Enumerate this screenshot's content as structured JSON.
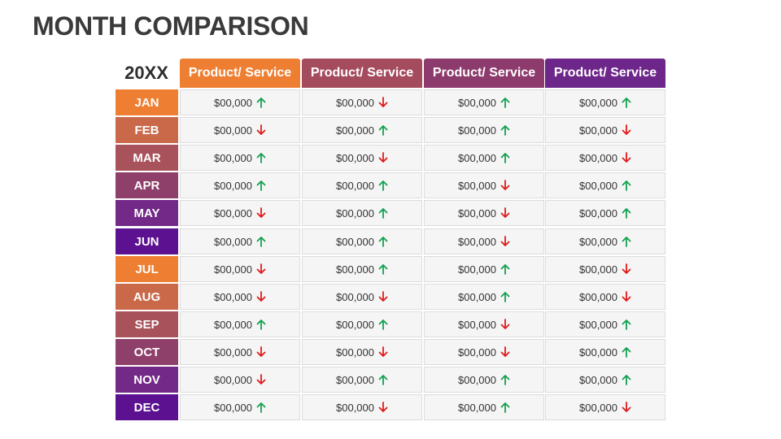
{
  "title": "MONTH COMPARISON",
  "year": "20XX",
  "colors": {
    "up": "#12a150",
    "down": "#e01b1b"
  },
  "headers": [
    {
      "label": "Product/ Service",
      "color": "#ee7f32"
    },
    {
      "label": "Product/ Service",
      "color": "#a54b5e"
    },
    {
      "label": "Product/ Service",
      "color": "#8d3a6c"
    },
    {
      "label": "Product/ Service",
      "color": "#6d2689"
    }
  ],
  "rows": [
    {
      "month": "JAN",
      "color": "#ee7f32",
      "cells": [
        {
          "value": "$00,000",
          "trend": "up"
        },
        {
          "value": "$00,000",
          "trend": "down"
        },
        {
          "value": "$00,000",
          "trend": "up"
        },
        {
          "value": "$00,000",
          "trend": "up"
        }
      ]
    },
    {
      "month": "FEB",
      "color": "#c9694a",
      "cells": [
        {
          "value": "$00,000",
          "trend": "down"
        },
        {
          "value": "$00,000",
          "trend": "up"
        },
        {
          "value": "$00,000",
          "trend": "up"
        },
        {
          "value": "$00,000",
          "trend": "down"
        }
      ]
    },
    {
      "month": "MAR",
      "color": "#a8525b",
      "cells": [
        {
          "value": "$00,000",
          "trend": "up"
        },
        {
          "value": "$00,000",
          "trend": "down"
        },
        {
          "value": "$00,000",
          "trend": "up"
        },
        {
          "value": "$00,000",
          "trend": "down"
        }
      ]
    },
    {
      "month": "APR",
      "color": "#8e3f6a",
      "cells": [
        {
          "value": "$00,000",
          "trend": "up"
        },
        {
          "value": "$00,000",
          "trend": "up"
        },
        {
          "value": "$00,000",
          "trend": "down"
        },
        {
          "value": "$00,000",
          "trend": "up"
        }
      ]
    },
    {
      "month": "MAY",
      "color": "#722987",
      "cells": [
        {
          "value": "$00,000",
          "trend": "down"
        },
        {
          "value": "$00,000",
          "trend": "up"
        },
        {
          "value": "$00,000",
          "trend": "down"
        },
        {
          "value": "$00,000",
          "trend": "up"
        }
      ]
    },
    {
      "month": "JUN",
      "color": "#5b1190",
      "cells": [
        {
          "value": "$00,000",
          "trend": "up"
        },
        {
          "value": "$00,000",
          "trend": "up"
        },
        {
          "value": "$00,000",
          "trend": "down"
        },
        {
          "value": "$00,000",
          "trend": "up"
        }
      ]
    },
    {
      "month": "JUL",
      "color": "#ee7f32",
      "cells": [
        {
          "value": "$00,000",
          "trend": "down"
        },
        {
          "value": "$00,000",
          "trend": "up"
        },
        {
          "value": "$00,000",
          "trend": "up"
        },
        {
          "value": "$00,000",
          "trend": "down"
        }
      ]
    },
    {
      "month": "AUG",
      "color": "#c9694a",
      "cells": [
        {
          "value": "$00,000",
          "trend": "down"
        },
        {
          "value": "$00,000",
          "trend": "down"
        },
        {
          "value": "$00,000",
          "trend": "up"
        },
        {
          "value": "$00,000",
          "trend": "down"
        }
      ]
    },
    {
      "month": "SEP",
      "color": "#a8525b",
      "cells": [
        {
          "value": "$00,000",
          "trend": "up"
        },
        {
          "value": "$00,000",
          "trend": "up"
        },
        {
          "value": "$00,000",
          "trend": "down"
        },
        {
          "value": "$00,000",
          "trend": "up"
        }
      ]
    },
    {
      "month": "OCT",
      "color": "#8e3f6a",
      "cells": [
        {
          "value": "$00,000",
          "trend": "down"
        },
        {
          "value": "$00,000",
          "trend": "down"
        },
        {
          "value": "$00,000",
          "trend": "down"
        },
        {
          "value": "$00,000",
          "trend": "up"
        }
      ]
    },
    {
      "month": "NOV",
      "color": "#722987",
      "cells": [
        {
          "value": "$00,000",
          "trend": "down"
        },
        {
          "value": "$00,000",
          "trend": "up"
        },
        {
          "value": "$00,000",
          "trend": "up"
        },
        {
          "value": "$00,000",
          "trend": "up"
        }
      ]
    },
    {
      "month": "DEC",
      "color": "#5b1190",
      "cells": [
        {
          "value": "$00,000",
          "trend": "up"
        },
        {
          "value": "$00,000",
          "trend": "down"
        },
        {
          "value": "$00,000",
          "trend": "up"
        },
        {
          "value": "$00,000",
          "trend": "down"
        }
      ]
    }
  ]
}
